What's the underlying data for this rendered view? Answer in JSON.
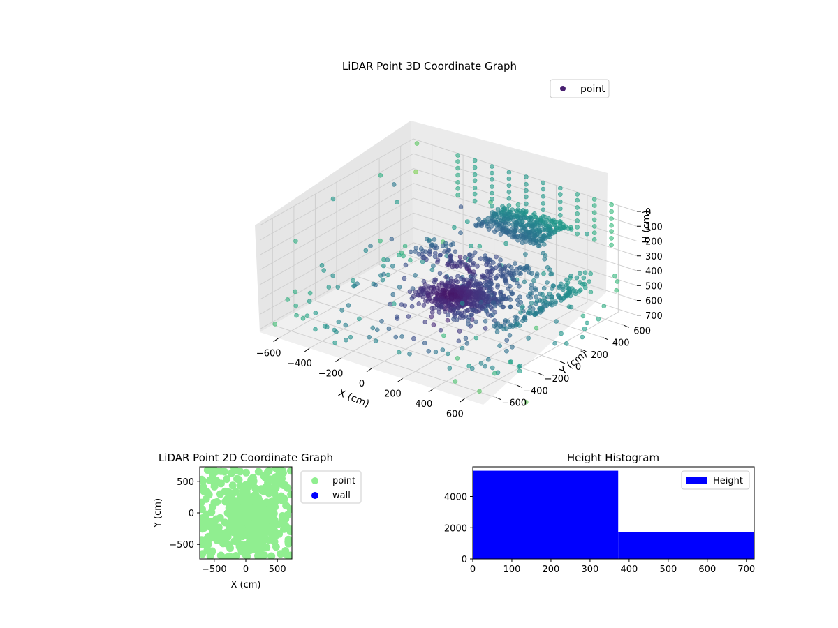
{
  "chart_data": [
    {
      "type": "scatter",
      "title": "LiDAR Point 3D Coordinate Graph",
      "xlabel": "X (cm)",
      "ylabel": "Y (cm)",
      "zlabel": "H (cm)",
      "xlim": [
        -720,
        720
      ],
      "ylim": [
        -720,
        720
      ],
      "zlim": [
        720,
        0
      ],
      "x_ticks": [
        -600,
        -400,
        -200,
        0,
        200,
        400,
        600
      ],
      "y_ticks": [
        -600,
        -400,
        -200,
        0,
        200,
        400,
        600
      ],
      "z_ticks": [
        0,
        100,
        200,
        300,
        400,
        500,
        600,
        700
      ],
      "grid": true,
      "legend": {
        "placement": "top-right",
        "entries": [
          {
            "name": "point",
            "color": "#481f70"
          }
        ]
      },
      "colormap": "viridis",
      "series": [
        {
          "name": "point"
        }
      ]
    },
    {
      "type": "scatter",
      "title": "LiDAR Point 2D Coordinate Graph",
      "xlabel": "X (cm)",
      "ylabel": "Y (cm)",
      "xlim": [
        -730,
        730
      ],
      "ylim": [
        -730,
        730
      ],
      "x_ticks": [
        -500,
        0,
        500
      ],
      "y_ticks": [
        -500,
        0,
        500
      ],
      "legend": {
        "placement": "outside-right",
        "entries": [
          {
            "name": "point",
            "color": "#90ee90"
          },
          {
            "name": "wall",
            "color": "#0000ff"
          }
        ]
      },
      "series": [
        {
          "name": "point",
          "color": "#90ee90"
        },
        {
          "name": "wall",
          "color": "#0000ff",
          "values": []
        }
      ]
    },
    {
      "type": "bar",
      "title": "Height Histogram",
      "xlim": [
        0,
        720
      ],
      "ylim": [
        0,
        5900
      ],
      "x_ticks": [
        0,
        100,
        200,
        300,
        400,
        500,
        600,
        700
      ],
      "y_ticks": [
        0,
        2000,
        4000
      ],
      "bins": [
        {
          "from": 0,
          "to": 372,
          "count": 5650
        },
        {
          "from": 372,
          "to": 720,
          "count": 1700
        }
      ],
      "legend": {
        "placement": "top-right",
        "entries": [
          {
            "name": "Height",
            "color": "#0000ff"
          }
        ]
      },
      "series": [
        {
          "name": "Height",
          "color": "#0000ff"
        }
      ]
    }
  ]
}
